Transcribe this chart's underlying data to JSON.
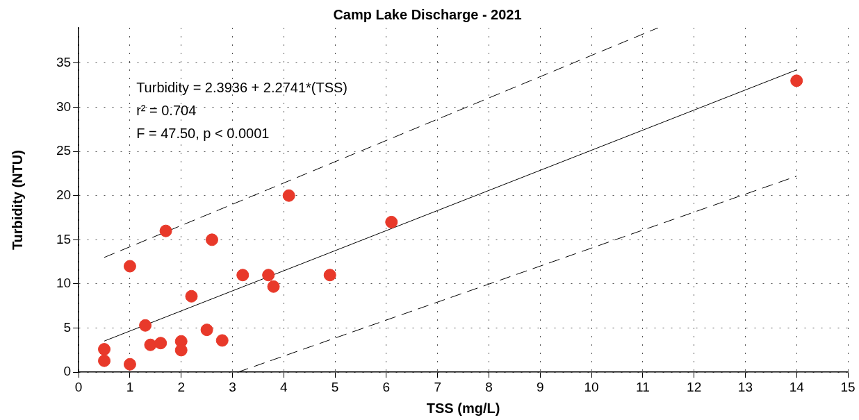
{
  "chart_data": {
    "type": "scatter",
    "title": "Camp Lake Discharge - 2021",
    "xlabel": "TSS (mg/L)",
    "ylabel": "Turbidity (NTU)",
    "annotations": [
      "Turbidity = 2.3936 + 2.2741*(TSS)",
      "r² = 0.704",
      "F = 47.50, p < 0.0001"
    ],
    "series": [
      {
        "color": "#e8392a",
        "marker": "circle",
        "x": [
          0.5,
          0.5,
          1,
          1,
          1.3,
          1.4,
          1.6,
          1.7,
          2,
          2,
          2.2,
          2.5,
          2.6,
          2.8,
          3.2,
          3.7,
          3.8,
          4.1,
          4.9,
          6.1,
          14
        ],
        "values": [
          2.6,
          1.3,
          12,
          0.9,
          5.3,
          3.1,
          3.3,
          16,
          3.5,
          2.5,
          8.6,
          4.8,
          15,
          3.6,
          11,
          11,
          9.7,
          20,
          11,
          17,
          33
        ]
      },
      {
        "type": "line",
        "color": "#000000",
        "marker": "none",
        "line_style": "solid",
        "x": [
          0.5,
          14
        ],
        "values": [
          3.53,
          34.23
        ]
      },
      {
        "type": "line",
        "color": "#000000",
        "marker": "none",
        "line_style": "dashed",
        "x": [
          0.5,
          11.3
        ],
        "values": [
          13,
          39
        ]
      },
      {
        "type": "line",
        "color": "#000000",
        "marker": "none",
        "line_style": "dashed",
        "x": [
          3.1,
          14
        ],
        "values": [
          0,
          22.2
        ]
      }
    ],
    "xlim": [
      0,
      15
    ],
    "xticks": [
      0,
      1,
      2,
      3,
      4,
      5,
      6,
      7,
      8,
      9,
      10,
      11,
      12,
      13,
      14,
      15
    ],
    "ylim": [
      0,
      39
    ],
    "yticks": [
      0,
      5,
      10,
      15,
      20,
      25,
      30,
      35
    ],
    "grid": true,
    "legend": false
  }
}
